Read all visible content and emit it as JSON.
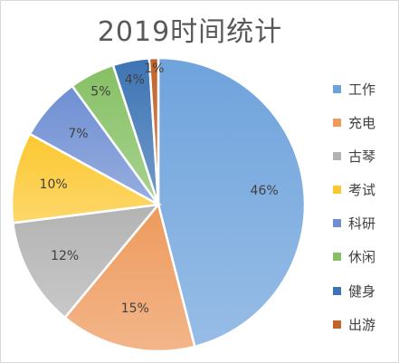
{
  "chart_data": {
    "type": "pie",
    "title": "2019时间统计",
    "legend_position": "right",
    "slices": [
      {
        "label": "工作",
        "value": 46,
        "display": "46%",
        "color": "#6fa3dc"
      },
      {
        "label": "充电",
        "value": 15,
        "display": "15%",
        "color": "#ee9a5c"
      },
      {
        "label": "古琴",
        "value": 12,
        "display": "12%",
        "color": "#b3b3b3"
      },
      {
        "label": "考试",
        "value": 10,
        "display": "10%",
        "color": "#fcc830"
      },
      {
        "label": "科研",
        "value": 7,
        "display": "7%",
        "color": "#6f8fd3"
      },
      {
        "label": "休闲",
        "value": 5,
        "display": "5%",
        "color": "#86c065"
      },
      {
        "label": "健身",
        "value": 4,
        "display": "4%",
        "color": "#3d74b4"
      },
      {
        "label": "出游",
        "value": 1,
        "display": "1%",
        "color": "#c0642a"
      }
    ]
  }
}
